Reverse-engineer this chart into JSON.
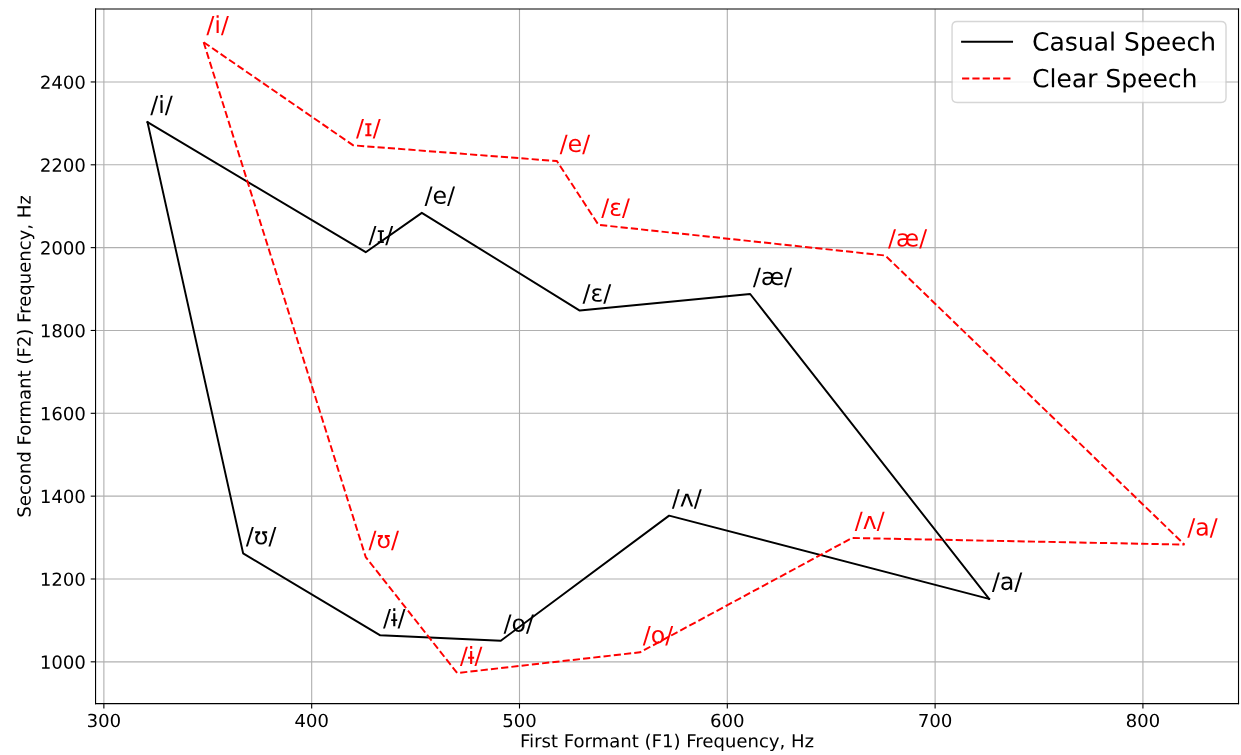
{
  "chart_data": {
    "type": "line",
    "xlabel": "First Formant (F1) Frequency, Hz",
    "ylabel": "Second Formant (F2) Frequency, Hz",
    "xlim": [
      296,
      846
    ],
    "xticks": [
      300,
      400,
      500,
      600,
      700,
      800
    ],
    "ylim": [
      899,
      2576
    ],
    "yticks": [
      1000,
      1200,
      1400,
      1600,
      1800,
      2000,
      2200,
      2400
    ],
    "grid": true,
    "legend": "top right",
    "marker": "none",
    "series": [
      {
        "name": "Casual Speech",
        "color": "#000000",
        "line_style": "solid",
        "x": [
          321,
          426,
          453,
          529,
          611,
          726
        ],
        "values": [
          2303,
          1989,
          2084,
          1848,
          1888,
          1152
        ],
        "value_labels": [
          "/i/",
          "/ɪ/",
          "/e/",
          "/ɛ/",
          "/æ/",
          "/a/"
        ]
      },
      {
        "color": "#000000",
        "line_style": "solid",
        "x": [
          321,
          367,
          433,
          491,
          572,
          726
        ],
        "values": [
          2303,
          1262,
          1064,
          1051,
          1353,
          1152
        ],
        "value_labels": [
          null,
          "/ʊ/",
          "/ɨ/",
          "/o/",
          "/ʌ/",
          null
        ]
      },
      {
        "name": "Clear Speech",
        "color": "#ff0000",
        "line_style": "dashed",
        "x": [
          348,
          420,
          518,
          538,
          676,
          820
        ],
        "values": [
          2496,
          2247,
          2209,
          2055,
          1981,
          1283
        ],
        "value_labels": [
          "/i/",
          "/ɪ/",
          "/e/",
          "/ɛ/",
          "/æ/",
          "/a/"
        ]
      },
      {
        "color": "#ff0000",
        "line_style": "dashed",
        "x": [
          348,
          426,
          470,
          558,
          660,
          820
        ],
        "values": [
          2496,
          1253,
          973,
          1023,
          1299,
          1283
        ],
        "value_labels": [
          null,
          "/ʊ/",
          "/ɨ/",
          "/o/",
          "/ʌ/",
          null
        ]
      }
    ]
  }
}
